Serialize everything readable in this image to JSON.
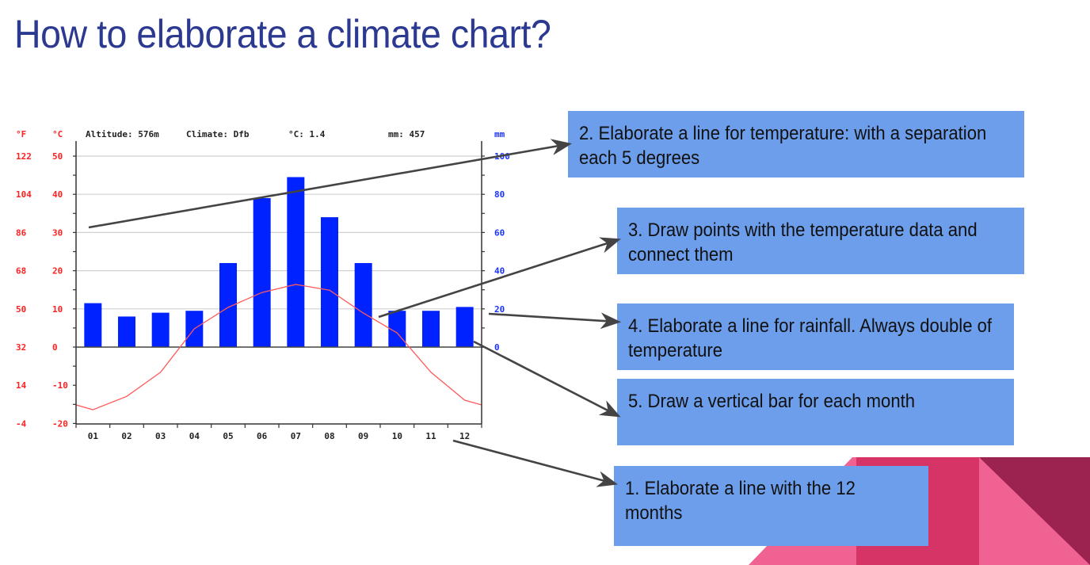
{
  "slide": {
    "title": "How to elaborate a climate chart?"
  },
  "chart_header": {
    "f_unit": "°F",
    "c_unit": "°C",
    "mm_unit": "mm",
    "altitude": "Altitude: 576m",
    "climate": "Climate: Dfb",
    "mean_temp": "°C: 1.4",
    "total_rain": "mm: 457"
  },
  "callouts": [
    {
      "id": 2,
      "text": "2. Elaborate a line for temperature: with a separation each 5 degrees"
    },
    {
      "id": 3,
      "text": "3. Draw points with the temperature data and connect them"
    },
    {
      "id": 4,
      "text": "4. Elaborate a line for rainfall. Always double of temperature"
    },
    {
      "id": 5,
      "text": "5. Draw a vertical bar for each month"
    },
    {
      "id": 1,
      "text": "1. Elaborate a line with the 12 months"
    }
  ],
  "colors": {
    "title": "#2b3990",
    "callout_bg": "#6d9eeb",
    "bar": "#0022ff",
    "temp_line": "#ff5a5a",
    "temp_axis": "#ff2020",
    "rain_axis": "#1a33ff",
    "deco_pink": "#f06292",
    "deco_magenta": "#d63367",
    "deco_dark": "#9c2350"
  },
  "chart_data": {
    "type": "bar+line",
    "title": "Climate chart (Altitude: 576m, Climate: Dfb)",
    "categories": [
      "01",
      "02",
      "03",
      "04",
      "05",
      "06",
      "07",
      "08",
      "09",
      "10",
      "11",
      "12"
    ],
    "series": [
      {
        "name": "Precipitation (mm)",
        "type": "bar",
        "axis": "right",
        "values": [
          23,
          16,
          18,
          19,
          44,
          78,
          89,
          68,
          44,
          19,
          19,
          21
        ]
      },
      {
        "name": "Temperature (°C)",
        "type": "line",
        "axis": "left",
        "values": [
          -16.4,
          -12.9,
          -6.6,
          4.8,
          10.4,
          14.3,
          16.4,
          14.9,
          8.9,
          3.7,
          -6.6,
          -13.9
        ]
      }
    ],
    "y_left": {
      "label": "°C",
      "ticks": [
        50,
        40,
        30,
        20,
        10,
        0,
        -10,
        -20
      ],
      "range": [
        -20,
        50
      ]
    },
    "y_left_f": {
      "label": "°F",
      "ticks": [
        122,
        104,
        86,
        68,
        50,
        32,
        14,
        -4
      ]
    },
    "y_right": {
      "label": "mm",
      "ticks": [
        100,
        80,
        60,
        40,
        20,
        0
      ],
      "range": [
        0,
        100
      ]
    },
    "summary": {
      "altitude_m": 576,
      "climate": "Dfb",
      "mean_temp_c": 1.4,
      "annual_rain_mm": 457
    },
    "grid": true
  }
}
